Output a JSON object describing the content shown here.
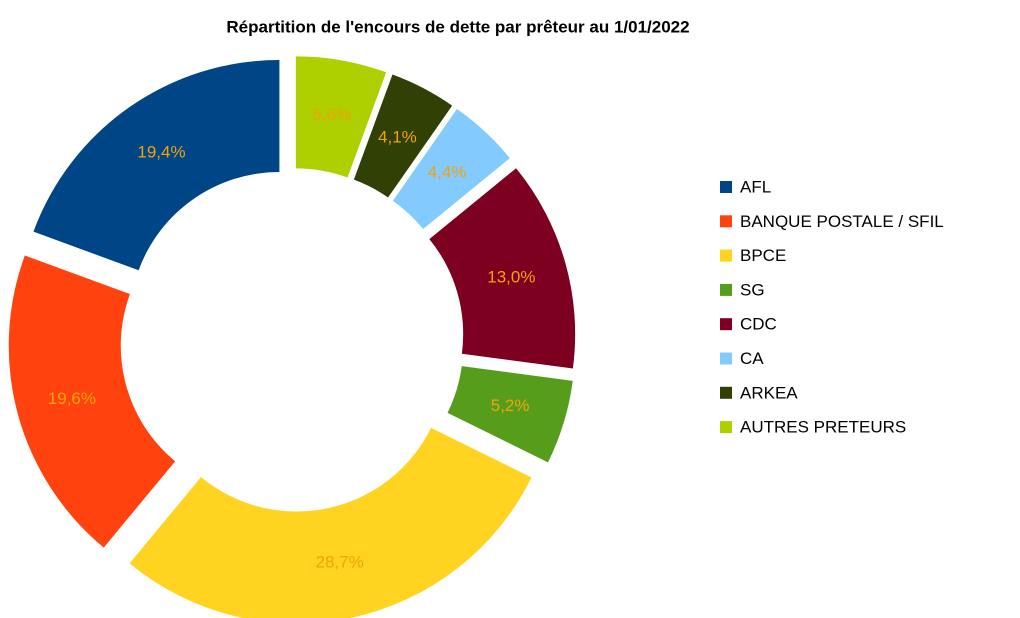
{
  "chart_data": {
    "type": "donut",
    "title": "Répartition de l'encours de dette par prêteur au 1/01/2022",
    "categories": [
      "AFL",
      "BANQUE POSTALE / SFIL",
      "BPCE",
      "SG",
      "CDC",
      "CA",
      "ARKEA",
      "AUTRES PRETEURS"
    ],
    "values": [
      19.4,
      19.6,
      28.7,
      5.2,
      13.0,
      4.4,
      4.1,
      5.6
    ],
    "value_labels": [
      "19,4%",
      "19,6%",
      "28,7%",
      "5,2%",
      "13,0%",
      "4,4%",
      "4,1%",
      "5,6%"
    ],
    "colors": [
      "#004586",
      "#ff420e",
      "#ffd320",
      "#579d1c",
      "#7e0021",
      "#83caff",
      "#314004",
      "#aecf00"
    ],
    "label_color": "#f0a30a",
    "direction": "counterclockwise",
    "legend": "right"
  }
}
